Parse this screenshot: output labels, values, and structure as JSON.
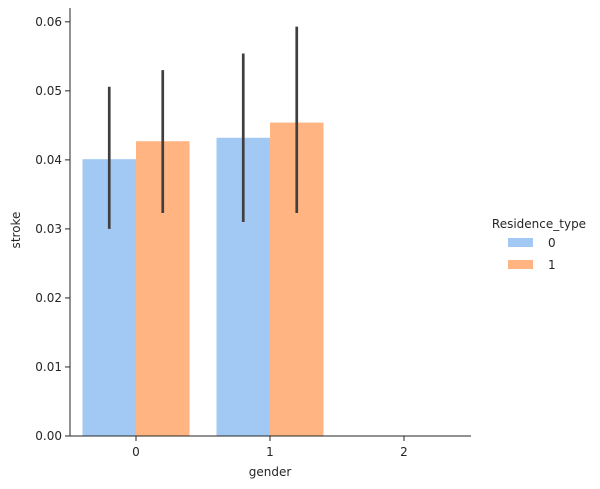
{
  "chart_data": {
    "type": "bar",
    "xlabel": "gender",
    "ylabel": "stroke",
    "categories": [
      "0",
      "1",
      "2"
    ],
    "ylim": [
      0,
      0.062
    ],
    "yticks": [
      "0.00",
      "0.01",
      "0.02",
      "0.03",
      "0.04",
      "0.05",
      "0.06"
    ],
    "grid": false,
    "legend": {
      "title": "Residence_type",
      "placement": "center-right"
    },
    "series": [
      {
        "name": "0",
        "color": "#a1c9f4",
        "values": [
          0.0401,
          0.0432,
          null
        ],
        "err_low": [
          0.03,
          0.031,
          null
        ],
        "err_high": [
          0.0506,
          0.0554,
          null
        ]
      },
      {
        "name": "1",
        "color": "#ffb482",
        "values": [
          0.0427,
          0.0454,
          null
        ],
        "err_low": [
          0.0323,
          0.0323,
          null
        ],
        "err_high": [
          0.053,
          0.0593,
          null
        ]
      }
    ],
    "error_bar_color": "#3f3f3f"
  }
}
